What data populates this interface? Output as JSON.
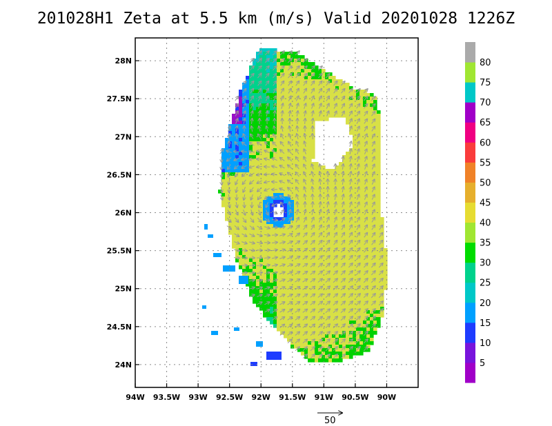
{
  "title": "201028H1 Zeta at 5.5 km (m/s) Valid 20201028 1226Z",
  "map": {
    "lon_range": [
      -94,
      -89.5
    ],
    "lat_range": [
      23.7,
      28.3
    ],
    "lon_ticks": [
      "94W",
      "93.5W",
      "93W",
      "92.5W",
      "92W",
      "91.5W",
      "91W",
      "90.5W",
      "90W"
    ],
    "lat_ticks": [
      "24N",
      "24.5N",
      "25N",
      "25.5N",
      "26N",
      "26.5N",
      "27N",
      "27.5N",
      "28N"
    ],
    "grid": true,
    "field": "wind speed at 5.5 km",
    "center_lon": -91.75,
    "center_lat": 26.05
  },
  "colorbar": {
    "labels": [
      "5",
      "10",
      "15",
      "20",
      "25",
      "30",
      "35",
      "40",
      "45",
      "50",
      "55",
      "60",
      "65",
      "70",
      "75",
      "80"
    ],
    "colors": [
      "#a000c8",
      "#7814dc",
      "#1e3cff",
      "#00a0ff",
      "#00c8c8",
      "#00d28c",
      "#00dc00",
      "#a0e632",
      "#e6dc32",
      "#e6af2d",
      "#f08228",
      "#fa3c3c",
      "#f00082",
      "#a000c8",
      "#00c8c8",
      "#a0e632",
      "#aaaaaa"
    ]
  },
  "vector_key": {
    "label": "50"
  }
}
